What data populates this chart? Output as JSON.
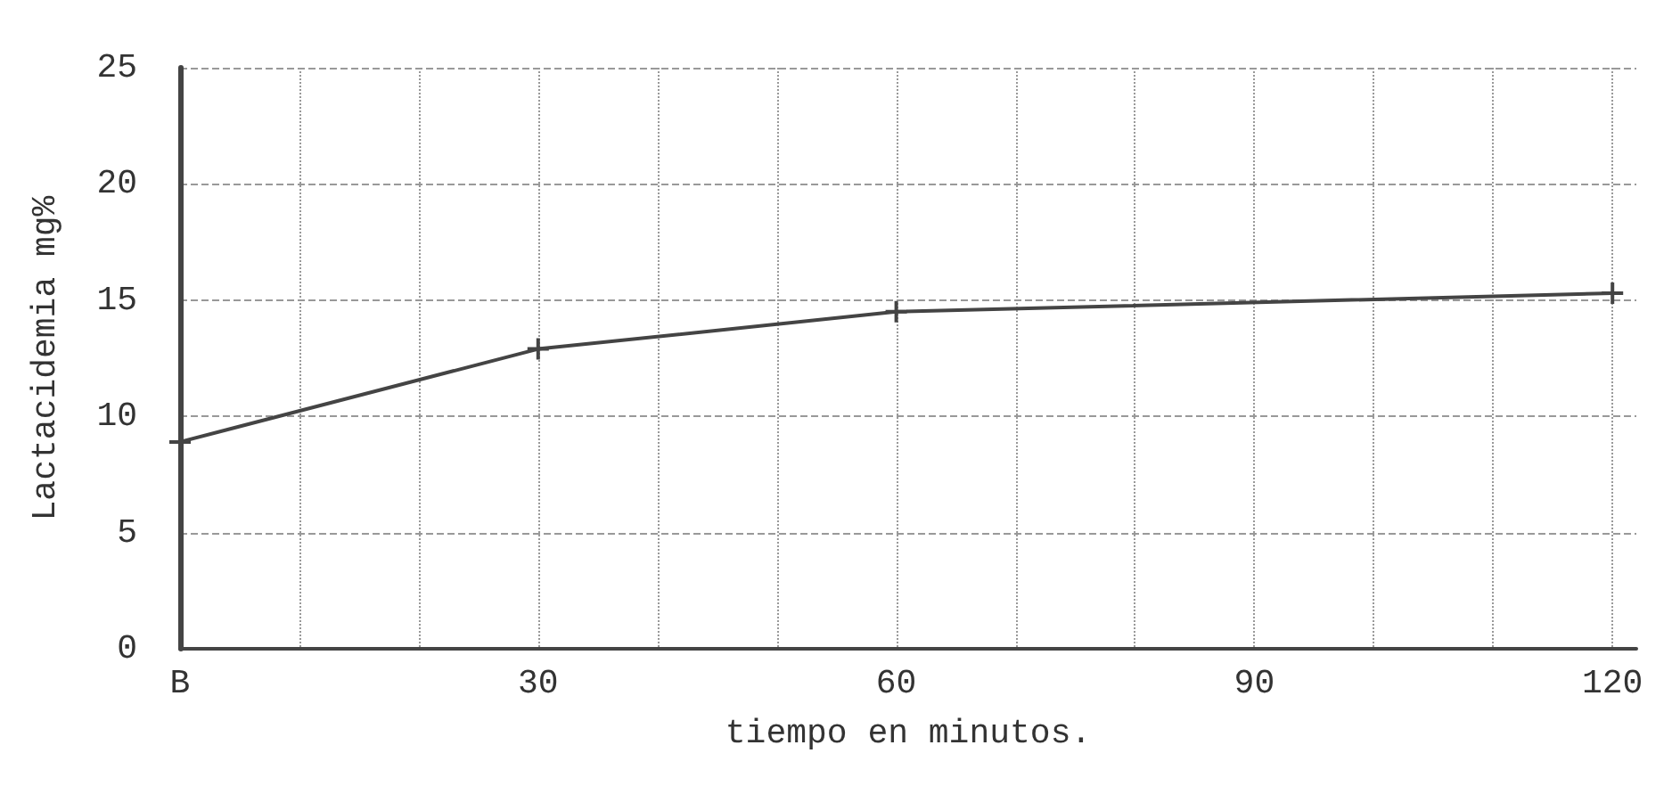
{
  "chart_data": {
    "type": "line",
    "xlabel": "tiempo en minutos.",
    "ylabel": "Lactacidemia mg%",
    "x": [
      0,
      30,
      60,
      120
    ],
    "series": [
      {
        "color": "#444444",
        "values": [
          8.9,
          12.9,
          14.5,
          15.3
        ]
      }
    ],
    "xlim": [
      0,
      122
    ],
    "xticks": [
      {
        "value": 0,
        "label": "B"
      },
      {
        "value": 10,
        "label": null
      },
      {
        "value": 20,
        "label": null
      },
      30,
      {
        "value": 40,
        "label": null
      },
      {
        "value": 50,
        "label": null
      },
      60,
      {
        "value": 70,
        "label": null
      },
      {
        "value": 80,
        "label": null
      },
      90,
      {
        "value": 100,
        "label": null
      },
      {
        "value": 110,
        "label": null
      },
      120
    ],
    "ylim": [
      0,
      25
    ],
    "yticks": [
      0,
      5,
      10,
      15,
      20,
      25
    ],
    "grid": true,
    "marker": "cross",
    "line_style": "solid"
  }
}
